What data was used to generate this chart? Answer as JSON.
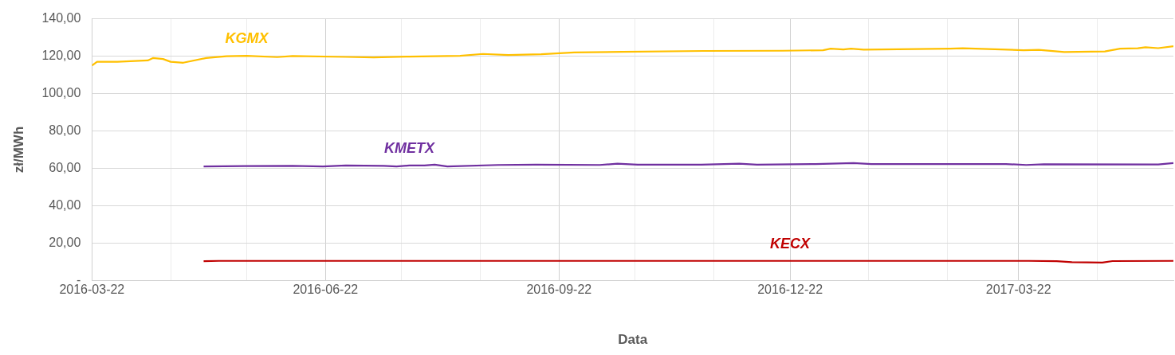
{
  "chart_data": {
    "type": "line",
    "xlabel": "Data",
    "ylabel": "zł/MWh",
    "series": [
      {
        "name": "KGMX",
        "color": "#ffc000",
        "x": [
          "2016-03-22",
          "2016-03-24",
          "2016-04-01",
          "2016-04-13",
          "2016-04-15",
          "2016-04-19",
          "2016-04-22",
          "2016-04-27",
          "2016-05-06",
          "2016-05-14",
          "2016-05-22",
          "2016-06-03",
          "2016-06-09",
          "2016-06-30",
          "2016-07-11",
          "2016-07-25",
          "2016-08-14",
          "2016-08-23",
          "2016-09-02",
          "2016-09-15",
          "2016-09-28",
          "2016-10-17",
          "2016-11-18",
          "2016-12-19",
          "2017-01-04",
          "2017-01-07",
          "2017-01-12",
          "2017-01-15",
          "2017-01-20",
          "2017-02-23",
          "2017-02-28",
          "2017-03-24",
          "2017-03-30",
          "2017-04-09",
          "2017-04-25",
          "2017-05-01",
          "2017-05-08",
          "2017-05-11",
          "2017-05-16",
          "2017-05-22"
        ],
        "values": [
          115,
          117,
          117,
          117.7,
          119,
          118.5,
          117,
          116.5,
          119,
          120,
          120.2,
          119.5,
          120.1,
          119.6,
          119.3,
          119.8,
          120.2,
          121.2,
          120.6,
          121,
          122,
          122.3,
          122.8,
          122.9,
          123.2,
          124,
          123.6,
          124,
          123.5,
          124,
          124.2,
          123.2,
          123.4,
          122.2,
          122.5,
          124,
          124.2,
          124.8,
          124.3,
          125.3
        ]
      },
      {
        "name": "KMETX",
        "color": "#7030a0",
        "x": [
          "2016-05-05",
          "2016-05-21",
          "2016-06-09",
          "2016-06-21",
          "2016-06-30",
          "2016-07-15",
          "2016-07-20",
          "2016-07-25",
          "2016-07-31",
          "2016-08-04",
          "2016-08-09",
          "2016-08-29",
          "2016-09-13",
          "2016-10-08",
          "2016-10-15",
          "2016-10-23",
          "2016-11-17",
          "2016-12-02",
          "2016-12-09",
          "2017-01-01",
          "2017-01-16",
          "2017-01-23",
          "2017-03-02",
          "2017-03-17",
          "2017-03-25",
          "2017-04-01",
          "2017-05-16",
          "2017-05-22"
        ],
        "values": [
          61,
          61.2,
          61.3,
          61,
          61.5,
          61.3,
          61,
          61.5,
          61.5,
          62,
          61,
          61.8,
          62,
          61.8,
          62.5,
          62,
          62,
          62.5,
          62,
          62.3,
          62.8,
          62.3,
          62.3,
          62.3,
          61.8,
          62.2,
          62.1,
          62.8
        ]
      },
      {
        "name": "KECX",
        "color": "#c00000",
        "x": [
          "2016-05-05",
          "2016-05-11",
          "2016-09-28",
          "2016-12-22",
          "2017-03-26",
          "2017-04-06",
          "2017-04-12",
          "2017-04-24",
          "2017-04-28",
          "2017-05-22"
        ],
        "values": [
          10.3,
          10.5,
          10.5,
          10.5,
          10.5,
          10.3,
          9.8,
          9.6,
          10.4,
          10.5
        ]
      }
    ],
    "xlim": [
      "2016-03-22",
      "2017-05-22"
    ],
    "xticks": [
      {
        "value": "2016-03-22",
        "label": "2016-03-22"
      },
      {
        "value": "2016-04-22",
        "label": null
      },
      {
        "value": "2016-05-22",
        "label": null
      },
      {
        "value": "2016-06-22",
        "label": "2016-06-22"
      },
      {
        "value": "2016-07-22",
        "label": null
      },
      {
        "value": "2016-08-22",
        "label": null
      },
      {
        "value": "2016-09-22",
        "label": "2016-09-22"
      },
      {
        "value": "2016-10-22",
        "label": null
      },
      {
        "value": "2016-11-22",
        "label": null
      },
      {
        "value": "2016-12-22",
        "label": "2016-12-22"
      },
      {
        "value": "2017-01-22",
        "label": null
      },
      {
        "value": "2017-02-22",
        "label": null
      },
      {
        "value": "2017-03-22",
        "label": "2017-03-22"
      },
      {
        "value": "2017-04-22",
        "label": null
      }
    ],
    "ylim": [
      0,
      140
    ],
    "yticks": [
      {
        "value": 0,
        "label": "-"
      },
      {
        "value": 20,
        "label": "20,00"
      },
      {
        "value": 40,
        "label": "40,00"
      },
      {
        "value": 60,
        "label": "60,00"
      },
      {
        "value": 80,
        "label": "80,00"
      },
      {
        "value": 100,
        "label": "100,00"
      },
      {
        "value": 120,
        "label": "120,00"
      },
      {
        "value": 140,
        "label": "140,00"
      }
    ],
    "grid": true,
    "legend": false,
    "marker": "none",
    "line_style": "solid"
  }
}
